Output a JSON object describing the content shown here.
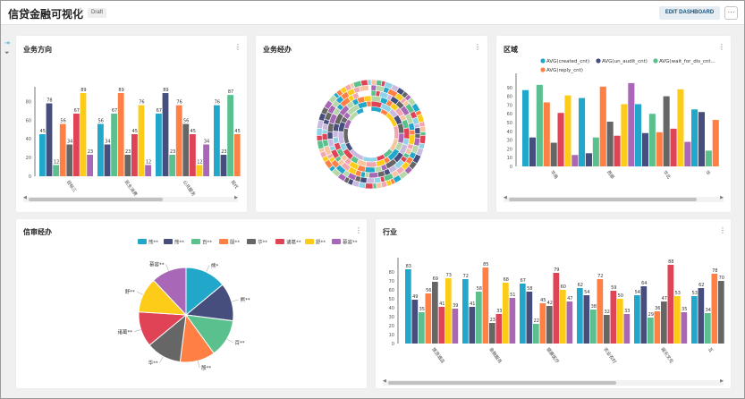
{
  "header": {
    "title": "信贷金融可视化",
    "draft_label": "Draft",
    "edit_label": "EDIT DASHBOARD",
    "more_label": "···"
  },
  "colors": [
    "#20a7c9",
    "#454e7c",
    "#5ac18e",
    "#ff7f44",
    "#666666",
    "#e04355",
    "#fccc19",
    "#a868b7"
  ],
  "cards": {
    "c1": {
      "title": "业务方向"
    },
    "c2": {
      "title": "业务经办"
    },
    "c3": {
      "title": "区域"
    },
    "c4": {
      "title": "信审经办"
    },
    "c5": {
      "title": "行业"
    }
  },
  "chart_data": [
    {
      "type": "bar",
      "title": "业务方向",
      "categories": [
        "目标三",
        "民生消费",
        "公共服务",
        "现代"
      ],
      "ylim": [
        0,
        90
      ],
      "yticks": [
        0,
        20,
        40,
        60,
        80
      ],
      "series_values": [
        [
          45,
          78,
          12,
          56,
          34,
          67,
          89,
          23
        ],
        [
          56,
          34,
          67,
          89,
          23,
          45,
          76,
          12
        ],
        [
          67,
          89,
          23,
          76,
          56,
          45,
          12,
          34
        ],
        [
          76,
          23,
          87,
          45,
          65
        ]
      ]
    },
    {
      "type": "sunburst",
      "title": "业务经办"
    },
    {
      "type": "bar",
      "title": "区域",
      "legend": [
        "AVG(created_cnt)",
        "AVG(un_audit_cnt)",
        "AVG(wait_for_dis_cnt...",
        "AVG(reply_cnt)"
      ],
      "categories": [
        "华南",
        "西部",
        "华北",
        "华"
      ],
      "ylim": [
        0,
        100
      ],
      "yticks": [
        0,
        10,
        20,
        30,
        40,
        50,
        60,
        70,
        80,
        90
      ],
      "series_values": [
        [
          87,
          33,
          93,
          73,
          27,
          61,
          81,
          13
        ],
        [
          78,
          15,
          33,
          91,
          51,
          35,
          71,
          95
        ],
        [
          71,
          38,
          60,
          39,
          80,
          43,
          88,
          28
        ],
        [
          65,
          62,
          18,
          53
        ]
      ]
    },
    {
      "type": "pie",
      "title": "信审经办",
      "legend": [
        "熊**",
        "熊**",
        "百**",
        "殷**",
        "华**",
        "诸葛**",
        "舒**",
        "慕容**"
      ],
      "slice_labels": [
        "熊*",
        "熊**",
        "百**",
        "殷**",
        "华**",
        "诸葛**",
        "舒**",
        "慕容**"
      ],
      "values": [
        14,
        13,
        13,
        12,
        12,
        12,
        12,
        12
      ]
    },
    {
      "type": "bar",
      "title": "行业",
      "categories": [
        "旅游酒店",
        "金融服务",
        "健康医疗",
        "农业农村",
        "娱乐文化",
        "互"
      ],
      "ylim": [
        0,
        90
      ],
      "yticks": [
        0,
        10,
        20,
        30,
        40,
        50,
        60,
        70,
        80
      ],
      "series_values": [
        [
          83,
          49,
          35,
          56,
          69,
          41,
          73,
          39
        ],
        [
          72,
          41,
          58,
          85,
          23,
          33,
          68,
          51
        ],
        [
          67,
          58,
          22,
          45,
          42,
          79,
          60,
          47
        ],
        [
          62,
          54,
          38,
          72,
          32,
          59,
          50,
          33
        ],
        [
          54,
          64,
          29,
          36,
          47,
          88,
          53,
          35
        ],
        [
          53,
          62,
          34,
          78,
          70
        ]
      ]
    }
  ]
}
